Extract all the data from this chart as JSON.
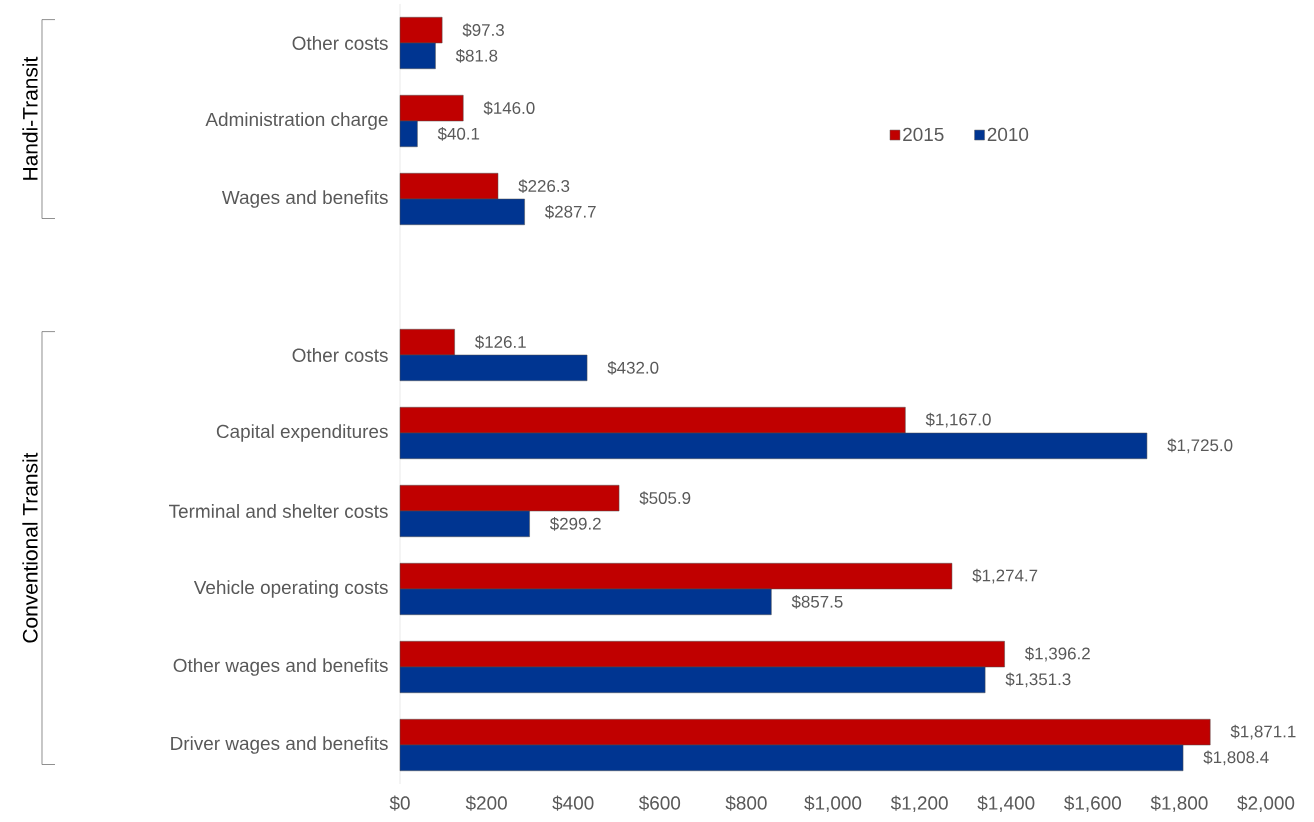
{
  "chart_data": {
    "type": "bar",
    "orientation": "horizontal",
    "categories": [
      "Other costs",
      "Administration charge",
      "Wages and benefits",
      null,
      "Other costs",
      "Capital expenditures",
      "Terminal and shelter costs",
      "Vehicle operating costs",
      "Other wages and benefits",
      "Driver wages and benefits"
    ],
    "series": [
      {
        "name": "2015",
        "color": "#c00000",
        "values": [
          97.3,
          146.0,
          226.3,
          null,
          126.1,
          1167.0,
          505.9,
          1274.7,
          1396.2,
          1871.1
        ],
        "value_labels": [
          "$97.3",
          "$146.0",
          "$226.3",
          null,
          "$126.1",
          "$1,167.0",
          "$505.9",
          "$1,274.7",
          "$1,396.2",
          "$1,871.1"
        ]
      },
      {
        "name": "2010",
        "color": "#003591",
        "values": [
          81.8,
          40.1,
          287.7,
          null,
          432.0,
          1725.0,
          299.2,
          857.5,
          1351.3,
          1808.4
        ],
        "value_labels": [
          "$81.8",
          "$40.1",
          "$287.7",
          null,
          "$432.0",
          "$1,725.0",
          "$299.2",
          "$857.5",
          "$1,351.3",
          "$1,808.4"
        ]
      }
    ],
    "xlim": [
      0,
      2000
    ],
    "xticks": [
      {
        "value": 0,
        "label": "$0"
      },
      {
        "value": 200,
        "label": "$200"
      },
      {
        "value": 400,
        "label": "$400"
      },
      {
        "value": 600,
        "label": "$600"
      },
      {
        "value": 800,
        "label": "$800"
      },
      {
        "value": 1000,
        "label": "$1,000"
      },
      {
        "value": 1200,
        "label": "$1,200"
      },
      {
        "value": 1400,
        "label": "$1,400"
      },
      {
        "value": 1600,
        "label": "$1,600"
      },
      {
        "value": 1800,
        "label": "$1,800"
      },
      {
        "value": 2000,
        "label": "$2,000"
      }
    ],
    "annotations": [
      "Handi-Transit",
      "Conventional Transit"
    ],
    "legend": "top right",
    "grid": false
  }
}
